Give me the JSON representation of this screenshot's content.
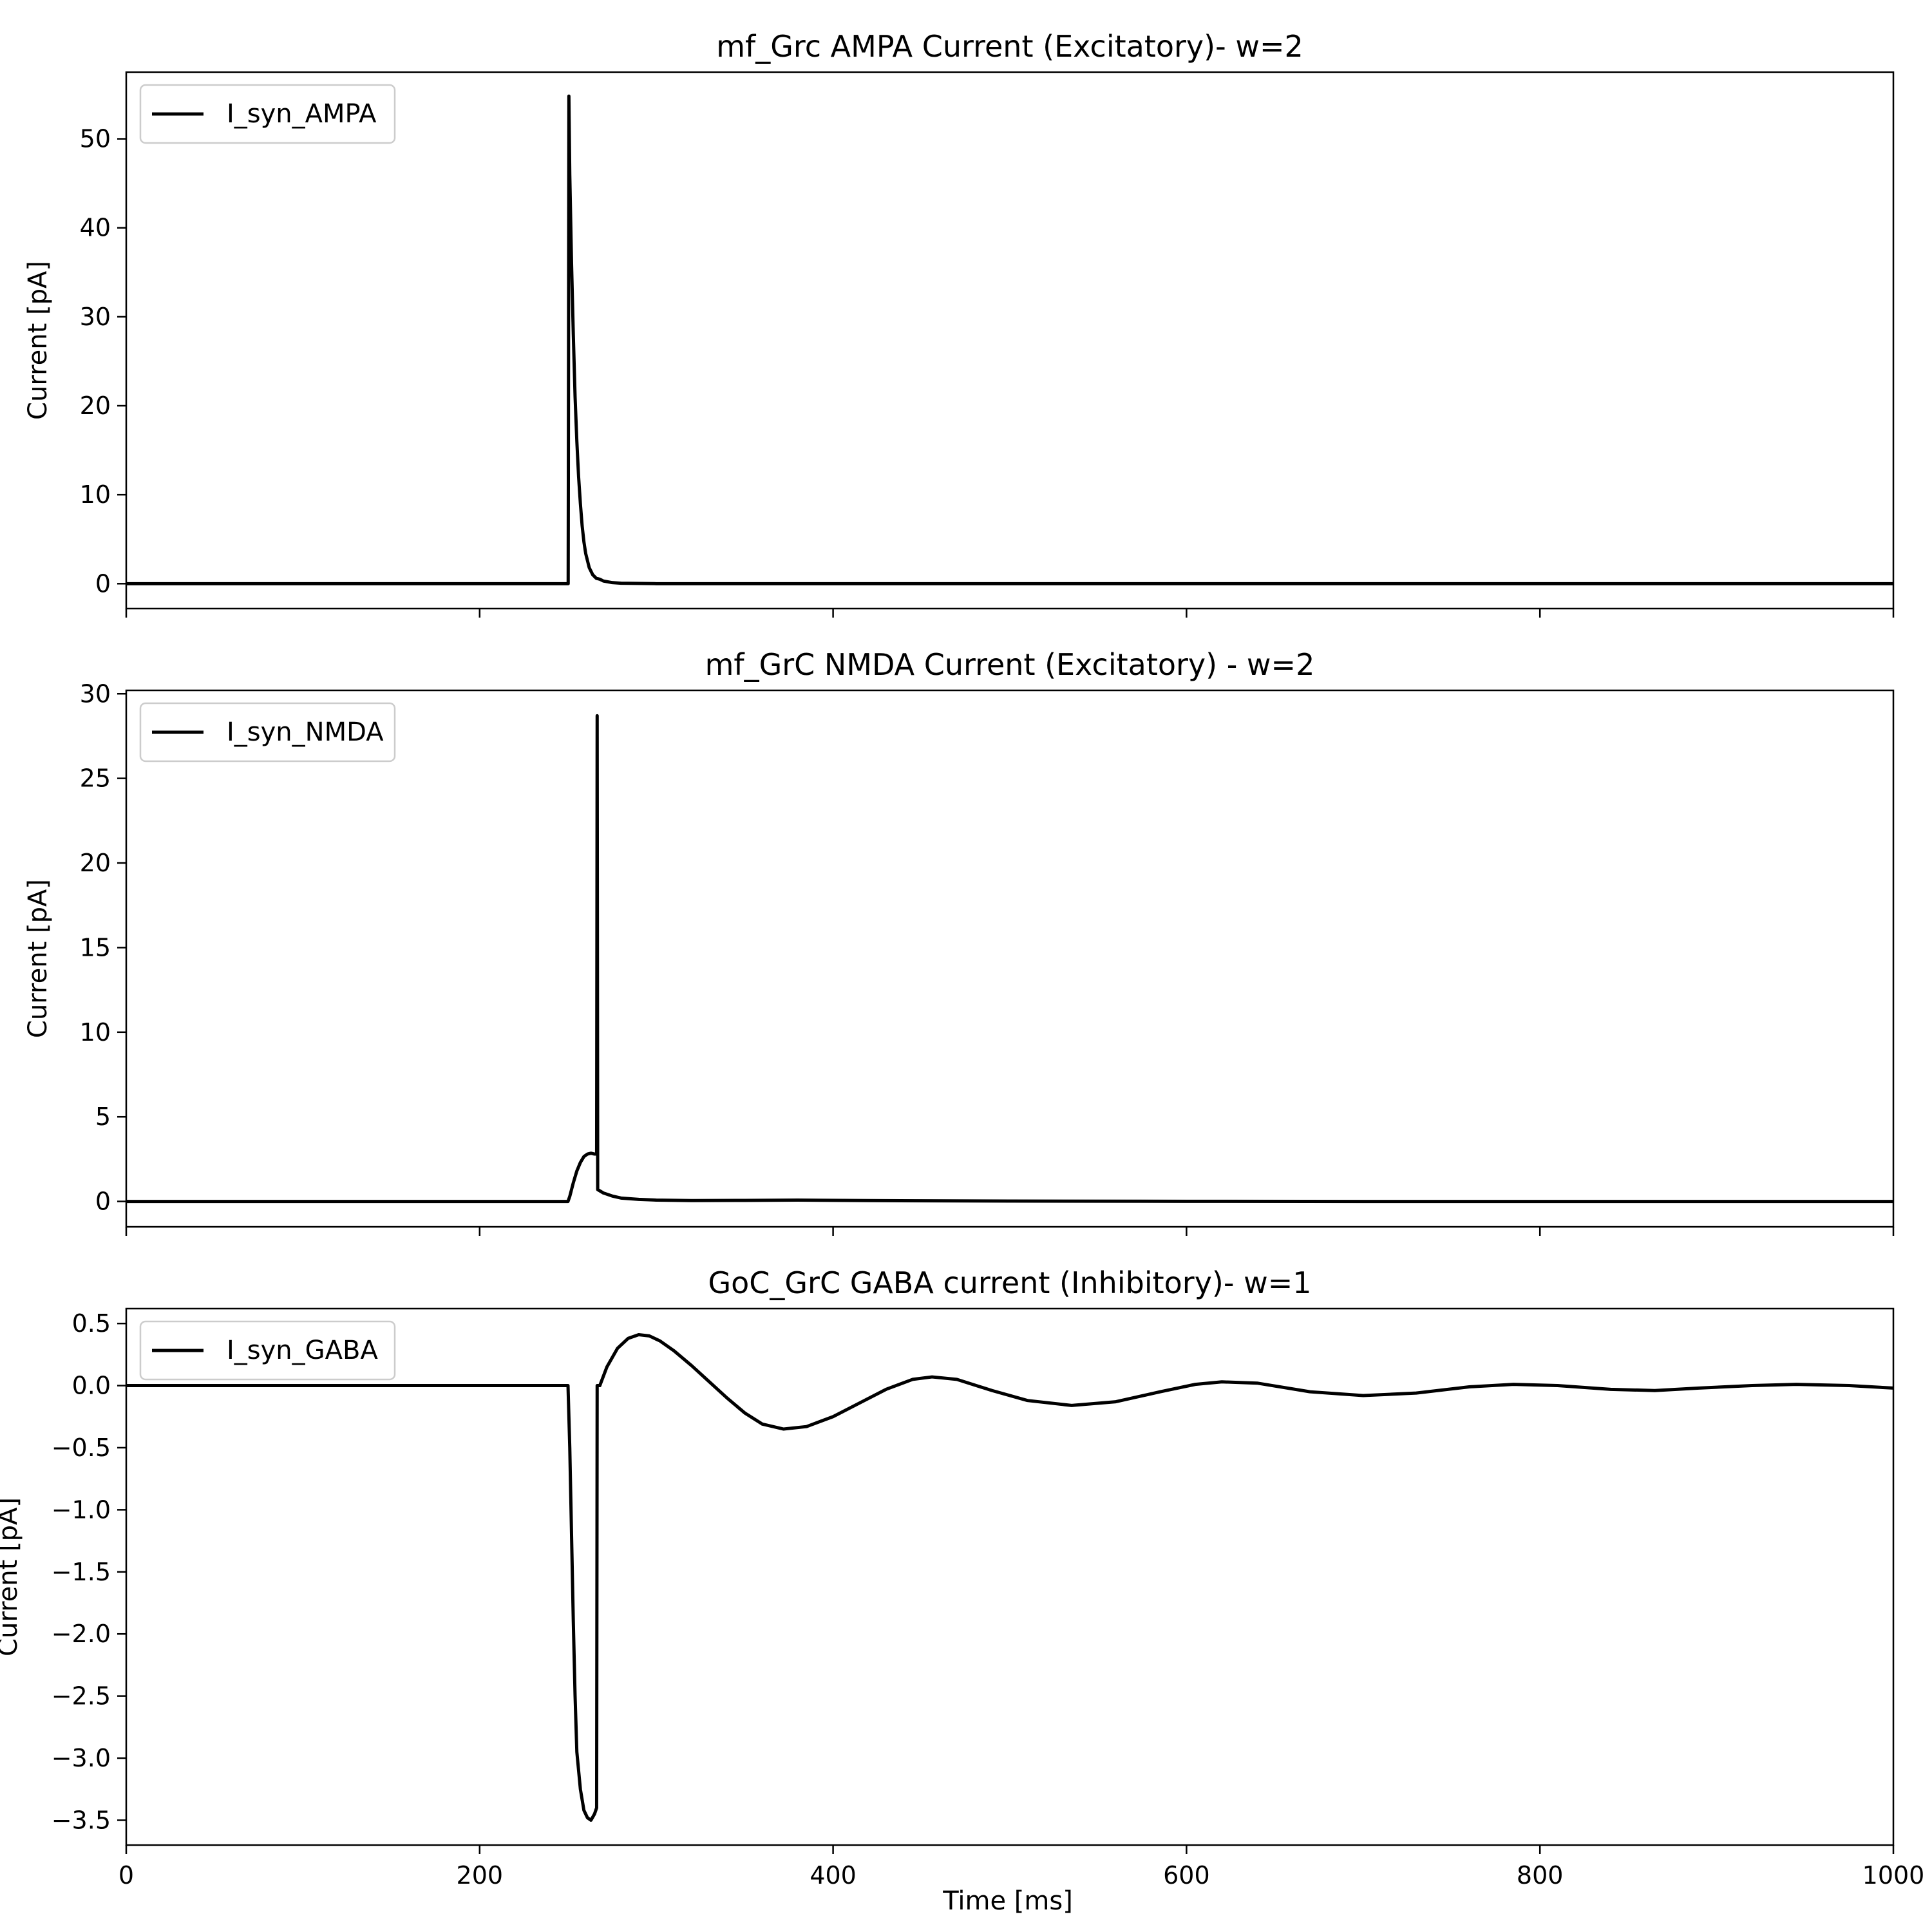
{
  "figure": {
    "xlabel": "Time [ms]"
  },
  "chart_data": [
    {
      "type": "line",
      "title": "mf_Grc AMPA Current (Excitatory)- w=2",
      "xlabel": "",
      "ylabel": "Current [pA]",
      "xlim": [
        0,
        1000
      ],
      "ylim": [
        -2.8,
        57.5
      ],
      "yticks": [
        0,
        10,
        20,
        30,
        40,
        50
      ],
      "yticklabels": [
        "0",
        "10",
        "20",
        "30",
        "40",
        "50"
      ],
      "xticks": [
        0,
        200,
        400,
        600,
        800,
        1000
      ],
      "xticklabels": [],
      "legend": "upper-left",
      "grid": false,
      "series": [
        {
          "name": "I_syn_AMPA",
          "color": "#000000",
          "points": [
            [
              0,
              0
            ],
            [
              250,
              0
            ],
            [
              250.1,
              0
            ],
            [
              250.5,
              54.8
            ],
            [
              251,
              46
            ],
            [
              252,
              36
            ],
            [
              253,
              28
            ],
            [
              254,
              21
            ],
            [
              255,
              16
            ],
            [
              256,
              12
            ],
            [
              257,
              9
            ],
            [
              258,
              6.5
            ],
            [
              259,
              4.7
            ],
            [
              260,
              3.4
            ],
            [
              262,
              1.8
            ],
            [
              264,
              1.0
            ],
            [
              266,
              0.6
            ],
            [
              267,
              0.55
            ],
            [
              268,
              0.5
            ],
            [
              270,
              0.3
            ],
            [
              275,
              0.12
            ],
            [
              280,
              0.05
            ],
            [
              300,
              0
            ],
            [
              1000,
              0
            ]
          ]
        }
      ]
    },
    {
      "type": "line",
      "title": "mf_GrC NMDA Current (Excitatory) - w=2",
      "xlabel": "",
      "ylabel": "Current [pA]",
      "xlim": [
        0,
        1000
      ],
      "ylim": [
        -1.5,
        30.2
      ],
      "yticks": [
        0,
        5,
        10,
        15,
        20,
        25,
        30
      ],
      "yticklabels": [
        "0",
        "5",
        "10",
        "15",
        "20",
        "25",
        "30"
      ],
      "xticks": [
        0,
        200,
        400,
        600,
        800,
        1000
      ],
      "xticklabels": [],
      "legend": "upper-left",
      "grid": false,
      "series": [
        {
          "name": "I_syn_NMDA",
          "color": "#000000",
          "points": [
            [
              0,
              0
            ],
            [
              250,
              0
            ],
            [
              251,
              0.3
            ],
            [
              253,
              1.1
            ],
            [
              255,
              1.8
            ],
            [
              257,
              2.3
            ],
            [
              259,
              2.65
            ],
            [
              261,
              2.8
            ],
            [
              263,
              2.85
            ],
            [
              265,
              2.8
            ],
            [
              266.2,
              2.8
            ],
            [
              266.5,
              28.7
            ],
            [
              266.8,
              0.7
            ],
            [
              270,
              0.5
            ],
            [
              275,
              0.32
            ],
            [
              280,
              0.2
            ],
            [
              290,
              0.12
            ],
            [
              300,
              0.08
            ],
            [
              320,
              0.05
            ],
            [
              350,
              0.06
            ],
            [
              380,
              0.08
            ],
            [
              420,
              0.05
            ],
            [
              500,
              0.02
            ],
            [
              600,
              0.01
            ],
            [
              700,
              0
            ],
            [
              1000,
              0
            ]
          ]
        }
      ]
    },
    {
      "type": "line",
      "title": "GoC_GrC GABA current (Inhibitory)- w=1",
      "xlabel": "Time [ms]",
      "ylabel": "Current [pA]",
      "xlim": [
        0,
        1000
      ],
      "ylim": [
        -3.7,
        0.62
      ],
      "yticks": [
        0.5,
        0.0,
        -0.5,
        -1.0,
        -1.5,
        -2.0,
        -2.5,
        -3.0,
        -3.5
      ],
      "yticklabels": [
        "0.5",
        "0.0",
        "−0.5",
        "−1.0",
        "−1.5",
        "−2.0",
        "−2.5",
        "−3.0",
        "−3.5"
      ],
      "xticks": [
        0,
        200,
        400,
        600,
        800,
        1000
      ],
      "xticklabels": [
        "0",
        "200",
        "400",
        "600",
        "800",
        "1000"
      ],
      "legend": "upper-left",
      "grid": false,
      "series": [
        {
          "name": "I_syn_GABA",
          "color": "#000000",
          "points": [
            [
              0,
              0
            ],
            [
              250,
              0
            ],
            [
              251,
              -0.5
            ],
            [
              252,
              -1.2
            ],
            [
              253,
              -1.9
            ],
            [
              254,
              -2.5
            ],
            [
              255,
              -2.95
            ],
            [
              257,
              -3.25
            ],
            [
              259,
              -3.42
            ],
            [
              261,
              -3.48
            ],
            [
              263,
              -3.5
            ],
            [
              265,
              -3.45
            ],
            [
              266.2,
              -3.4
            ],
            [
              266.5,
              0
            ],
            [
              268,
              0
            ],
            [
              272,
              0.15
            ],
            [
              278,
              0.3
            ],
            [
              284,
              0.38
            ],
            [
              290,
              0.41
            ],
            [
              296,
              0.4
            ],
            [
              302,
              0.36
            ],
            [
              310,
              0.28
            ],
            [
              320,
              0.16
            ],
            [
              330,
              0.03
            ],
            [
              340,
              -0.1
            ],
            [
              350,
              -0.22
            ],
            [
              360,
              -0.31
            ],
            [
              372,
              -0.35
            ],
            [
              385,
              -0.33
            ],
            [
              400,
              -0.25
            ],
            [
              415,
              -0.14
            ],
            [
              430,
              -0.03
            ],
            [
              445,
              0.05
            ],
            [
              456,
              0.07
            ],
            [
              470,
              0.05
            ],
            [
              490,
              -0.04
            ],
            [
              510,
              -0.12
            ],
            [
              535,
              -0.16
            ],
            [
              560,
              -0.13
            ],
            [
              585,
              -0.05
            ],
            [
              605,
              0.01
            ],
            [
              620,
              0.03
            ],
            [
              640,
              0.02
            ],
            [
              670,
              -0.05
            ],
            [
              700,
              -0.08
            ],
            [
              730,
              -0.06
            ],
            [
              760,
              -0.01
            ],
            [
              785,
              0.01
            ],
            [
              810,
              0
            ],
            [
              840,
              -0.03
            ],
            [
              865,
              -0.04
            ],
            [
              890,
              -0.02
            ],
            [
              920,
              0
            ],
            [
              945,
              0.01
            ],
            [
              975,
              0
            ],
            [
              1000,
              -0.02
            ]
          ]
        }
      ]
    }
  ]
}
